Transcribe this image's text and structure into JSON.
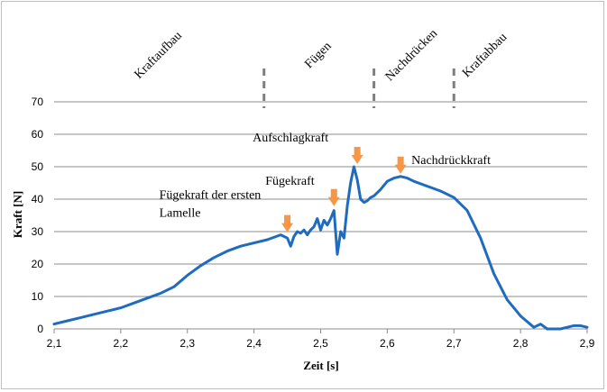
{
  "chart_data": {
    "type": "line",
    "xlabel": "Zeit [s]",
    "ylabel": "Kraft [N]",
    "xlim": [
      2.1,
      2.9
    ],
    "ylim": [
      0,
      70
    ],
    "x_ticks": [
      "2,1",
      "2,2",
      "2,3",
      "2,4",
      "2,5",
      "2,6",
      "2,7",
      "2,8",
      "2,9"
    ],
    "y_ticks": [
      "0",
      "10",
      "20",
      "30",
      "40",
      "50",
      "60",
      "70"
    ],
    "grid": "horizontal",
    "line_color": "#1f6bbf",
    "arrow_color": "#f79646",
    "divider_color": "#7f7f7f",
    "phases": [
      {
        "label": "Kraftaufbau",
        "x": 2.26
      },
      {
        "label": "Fügen",
        "x": 2.5
      },
      {
        "label": "Nachdrücken",
        "x": 2.64
      },
      {
        "label": "Kraftabbau",
        "x": 2.75
      }
    ],
    "phase_dividers": [
      2.415,
      2.58,
      2.7
    ],
    "annotations": [
      {
        "lines": [
          "Fügekraft der ersten",
          "Lamelle"
        ],
        "arrow_x": 2.45,
        "arrow_y": 29
      },
      {
        "lines": [
          "Fügekraft"
        ],
        "arrow_x": 2.52,
        "arrow_y": 37
      },
      {
        "lines": [
          "Aufschlagkraft"
        ],
        "arrow_x": 2.555,
        "arrow_y": 50
      },
      {
        "lines": [
          "Nachdrückkraft"
        ],
        "arrow_x": 2.62,
        "arrow_y": 47
      }
    ],
    "series": [
      {
        "x": [
          2.1,
          2.12,
          2.14,
          2.16,
          2.18,
          2.2,
          2.22,
          2.24,
          2.26,
          2.28,
          2.3,
          2.32,
          2.34,
          2.36,
          2.38,
          2.4,
          2.42,
          2.44,
          2.45,
          2.455,
          2.46,
          2.465,
          2.47,
          2.475,
          2.48,
          2.485,
          2.49,
          2.495,
          2.5,
          2.505,
          2.51,
          2.515,
          2.52,
          2.525,
          2.53,
          2.535,
          2.54,
          2.545,
          2.55,
          2.555,
          2.56,
          2.565,
          2.57,
          2.575,
          2.58,
          2.59,
          2.6,
          2.61,
          2.62,
          2.63,
          2.64,
          2.66,
          2.68,
          2.7,
          2.72,
          2.74,
          2.76,
          2.78,
          2.8,
          2.82,
          2.83,
          2.84,
          2.85,
          2.86,
          2.87,
          2.88,
          2.89,
          2.9
        ],
        "y": [
          1.5,
          2.5,
          3.5,
          4.5,
          5.5,
          6.5,
          8.0,
          9.5,
          11.0,
          13.0,
          16.5,
          19.5,
          22.0,
          24.0,
          25.5,
          26.5,
          27.5,
          29.0,
          28.0,
          25.5,
          28.5,
          30.0,
          29.5,
          30.5,
          29.0,
          30.5,
          31.5,
          34.0,
          30.5,
          33.5,
          32.0,
          34.0,
          36.5,
          23.0,
          30.0,
          28.0,
          38.0,
          45.0,
          50.0,
          46.0,
          40.0,
          39.0,
          39.5,
          40.5,
          41.0,
          43.0,
          45.5,
          46.5,
          47.0,
          46.5,
          45.5,
          44.0,
          42.5,
          40.5,
          36.5,
          28.0,
          17.0,
          9.0,
          4.0,
          0.5,
          1.5,
          0.0,
          0.0,
          0.0,
          0.5,
          1.0,
          1.0,
          0.5
        ]
      }
    ]
  }
}
